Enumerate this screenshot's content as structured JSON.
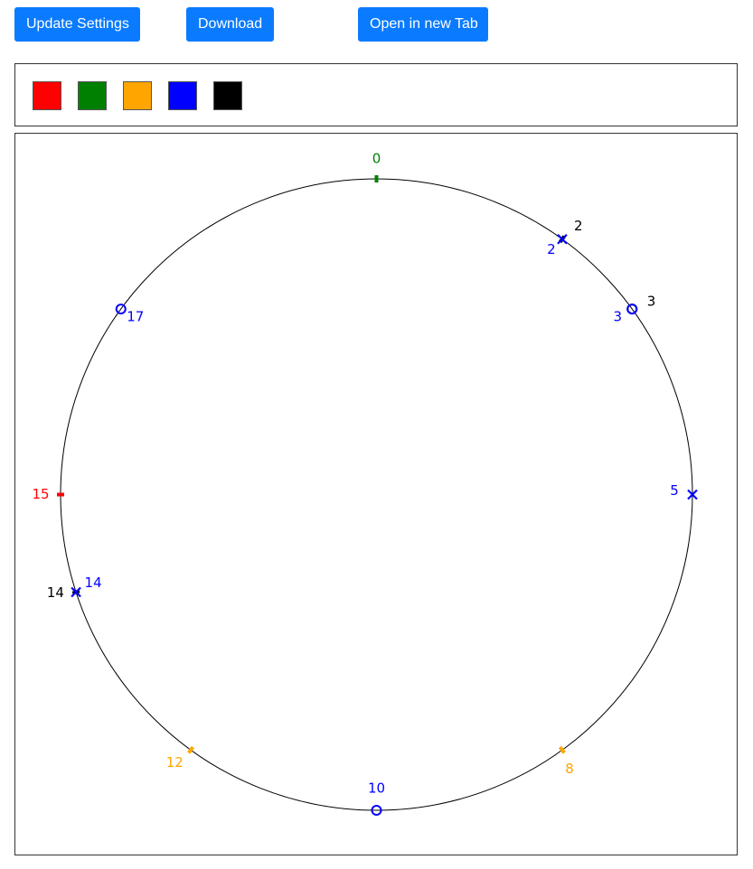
{
  "toolbar": {
    "update_label": "Update Settings",
    "download_label": "Download",
    "newtab_label": "Open in new Tab"
  },
  "palette": {
    "colors": [
      {
        "name": "red",
        "hex": "#ff0000"
      },
      {
        "name": "green",
        "hex": "#008000"
      },
      {
        "name": "orange",
        "hex": "#ffa500"
      },
      {
        "name": "blue",
        "hex": "#0000ff"
      },
      {
        "name": "black",
        "hex": "#000000"
      }
    ]
  },
  "dial": {
    "divisions": 20,
    "markers": [
      {
        "position": 0,
        "label": "0",
        "color": "#008000",
        "shape": "tick",
        "label_side": "outside"
      },
      {
        "position": 2,
        "label": "2",
        "color": "#000000",
        "shape": "tick",
        "label_side": "outside"
      },
      {
        "position": 2,
        "label": "2",
        "color": "#0000ff",
        "shape": "cross",
        "label_side": "inside"
      },
      {
        "position": 3,
        "label": "3",
        "color": "#000000",
        "shape": "circle",
        "label_side": "outside"
      },
      {
        "position": 3,
        "label": "3",
        "color": "#0000ff",
        "shape": "circle",
        "label_side": "inside"
      },
      {
        "position": 5,
        "label": "5",
        "color": "#0000ff",
        "shape": "cross",
        "label_side": "inside"
      },
      {
        "position": 8,
        "label": "8",
        "color": "#ffa500",
        "shape": "tick",
        "label_side": "outside"
      },
      {
        "position": 10,
        "label": "10",
        "color": "#0000ff",
        "shape": "circle",
        "label_side": "inside"
      },
      {
        "position": 12,
        "label": "12",
        "color": "#ffa500",
        "shape": "tick",
        "label_side": "outside"
      },
      {
        "position": 14,
        "label": "14",
        "color": "#000000",
        "shape": "tick",
        "label_side": "outside"
      },
      {
        "position": 14,
        "label": "14",
        "color": "#0000ff",
        "shape": "cross",
        "label_side": "inside"
      },
      {
        "position": 15,
        "label": "15",
        "color": "#ff0000",
        "shape": "tick",
        "label_side": "outside"
      },
      {
        "position": 17,
        "label": "17",
        "color": "#0000ff",
        "shape": "circle",
        "label_side": "inside"
      }
    ]
  }
}
